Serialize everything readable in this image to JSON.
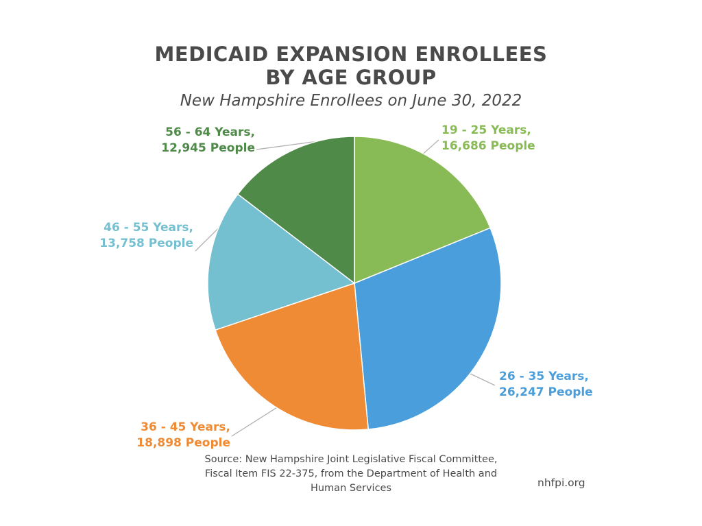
{
  "chart_data": {
    "type": "pie",
    "title_lines": [
      "MEDICAID EXPANSION ENROLLEES",
      "BY AGE GROUP"
    ],
    "subtitle": "New Hampshire Enrollees on June 30, 2022",
    "slices": [
      {
        "label": "19 - 25 Years,",
        "value": 16686,
        "value_text": "16,686 People",
        "color": "#88bb56"
      },
      {
        "label": "26 - 35 Years,",
        "value": 26247,
        "value_text": "26,247 People",
        "color": "#4a9edb"
      },
      {
        "label": "36 - 45 Years,",
        "value": 18898,
        "value_text": "18,898 People",
        "color": "#ef8b34"
      },
      {
        "label": "46 - 55 Years,",
        "value": 13758,
        "value_text": "13,758 People",
        "color": "#74bfd0"
      },
      {
        "label": "56 - 64 Years,",
        "value": 12945,
        "value_text": "12,945 People",
        "color": "#4f8a48"
      }
    ],
    "start": "top",
    "direction": "clockwise"
  },
  "source": {
    "lines": [
      "Source: New Hampshire Joint Legislative Fiscal Committee,",
      "Fiscal Item FIS 22-375, from the Department of Health and",
      "Human Services"
    ]
  },
  "site": "nhfpi.org",
  "colors": {
    "text": "#4a4a4a",
    "leader": "#b0b0b0",
    "slice_border": "#ffffff"
  }
}
